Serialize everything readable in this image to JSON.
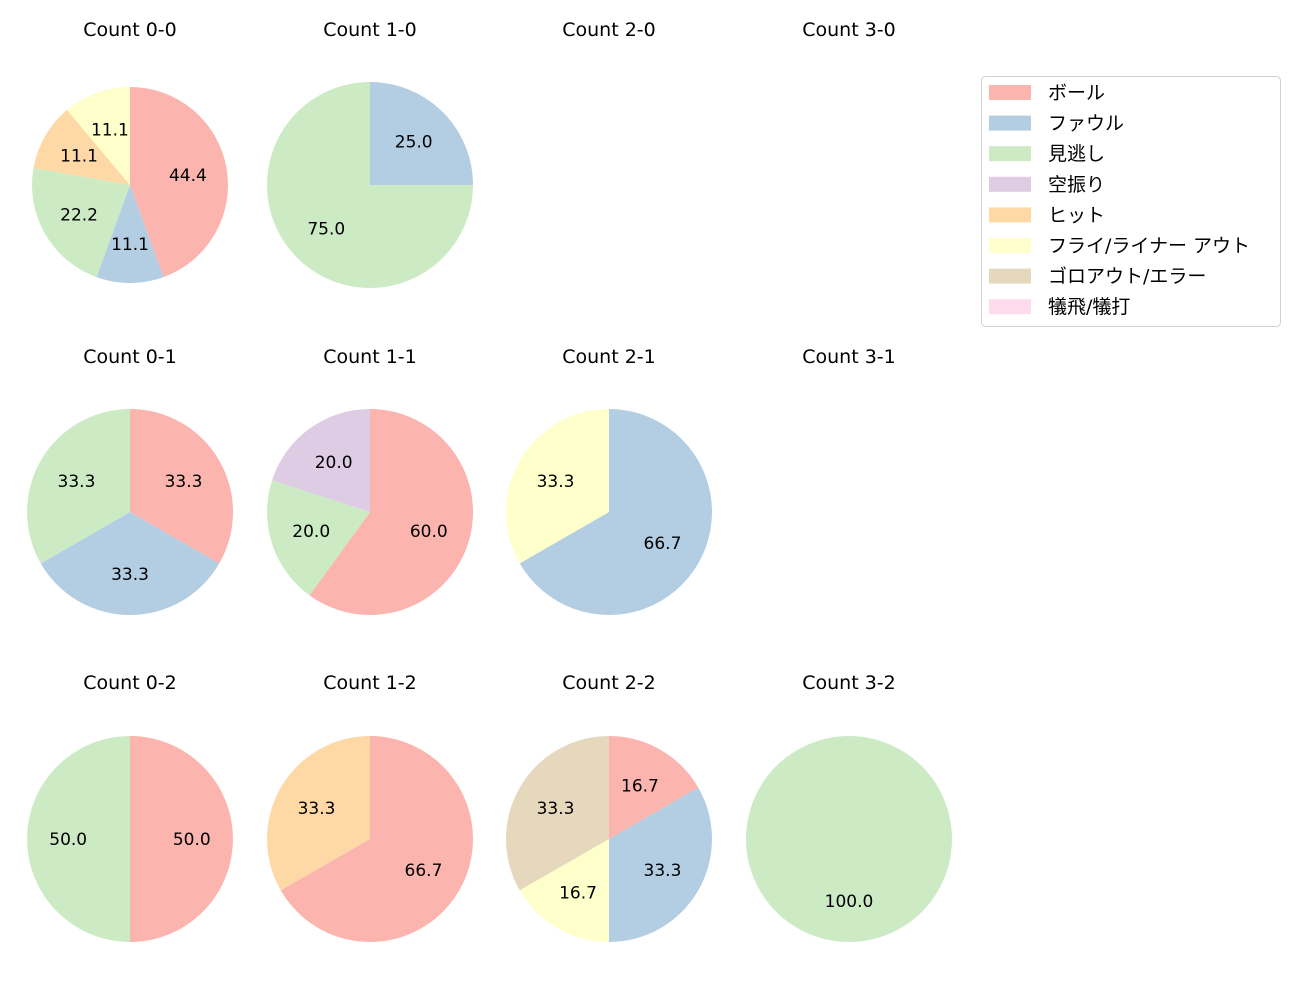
{
  "chart_data": {
    "type": "pie",
    "start_angle": "top",
    "direction": "clockwise",
    "legend": {
      "placement": "top-right",
      "entries": [
        "ボール",
        "ファウル",
        "見逃し",
        "空振り",
        "ヒット",
        "フライ/ライナー アウト",
        "ゴロアウト/エラー",
        "犠飛/犠打"
      ],
      "colors": [
        "#fbb4ae",
        "#b3cde3",
        "#ccebc5",
        "#decbe4",
        "#fed9a6",
        "#ffffcc",
        "#e5d8bd",
        "#fddaec"
      ]
    },
    "pies": [
      {
        "title": "Count 0-0",
        "slices": [
          {
            "category": "ボール",
            "value": 44.4
          },
          {
            "category": "ファウル",
            "value": 11.1
          },
          {
            "category": "見逃し",
            "value": 22.2
          },
          {
            "category": "ヒット",
            "value": 11.1
          },
          {
            "category": "フライ/ライナー アウト",
            "value": 11.1
          }
        ]
      },
      {
        "title": "Count 1-0",
        "slices": [
          {
            "category": "ファウル",
            "value": 25.0
          },
          {
            "category": "見逃し",
            "value": 75.0
          }
        ]
      },
      {
        "title": "Count 2-0",
        "slices": []
      },
      {
        "title": "Count 3-0",
        "slices": []
      },
      {
        "title": "Count 0-1",
        "slices": [
          {
            "category": "ボール",
            "value": 33.3
          },
          {
            "category": "ファウル",
            "value": 33.3
          },
          {
            "category": "見逃し",
            "value": 33.3
          }
        ]
      },
      {
        "title": "Count 1-1",
        "slices": [
          {
            "category": "ボール",
            "value": 60.0
          },
          {
            "category": "見逃し",
            "value": 20.0
          },
          {
            "category": "空振り",
            "value": 20.0
          }
        ]
      },
      {
        "title": "Count 2-1",
        "slices": [
          {
            "category": "ファウル",
            "value": 66.7
          },
          {
            "category": "フライ/ライナー アウト",
            "value": 33.3
          }
        ]
      },
      {
        "title": "Count 3-1",
        "slices": []
      },
      {
        "title": "Count 0-2",
        "slices": [
          {
            "category": "ボール",
            "value": 50.0
          },
          {
            "category": "見逃し",
            "value": 50.0
          }
        ]
      },
      {
        "title": "Count 1-2",
        "slices": [
          {
            "category": "ボール",
            "value": 66.7
          },
          {
            "category": "ヒット",
            "value": 33.3
          }
        ]
      },
      {
        "title": "Count 2-2",
        "slices": [
          {
            "category": "ボール",
            "value": 16.7
          },
          {
            "category": "ファウル",
            "value": 33.3
          },
          {
            "category": "フライ/ライナー アウト",
            "value": 16.7
          },
          {
            "category": "ゴロアウト/エラー",
            "value": 33.3
          }
        ]
      },
      {
        "title": "Count 3-2",
        "slices": [
          {
            "category": "見逃し",
            "value": 100.0
          }
        ]
      }
    ]
  }
}
